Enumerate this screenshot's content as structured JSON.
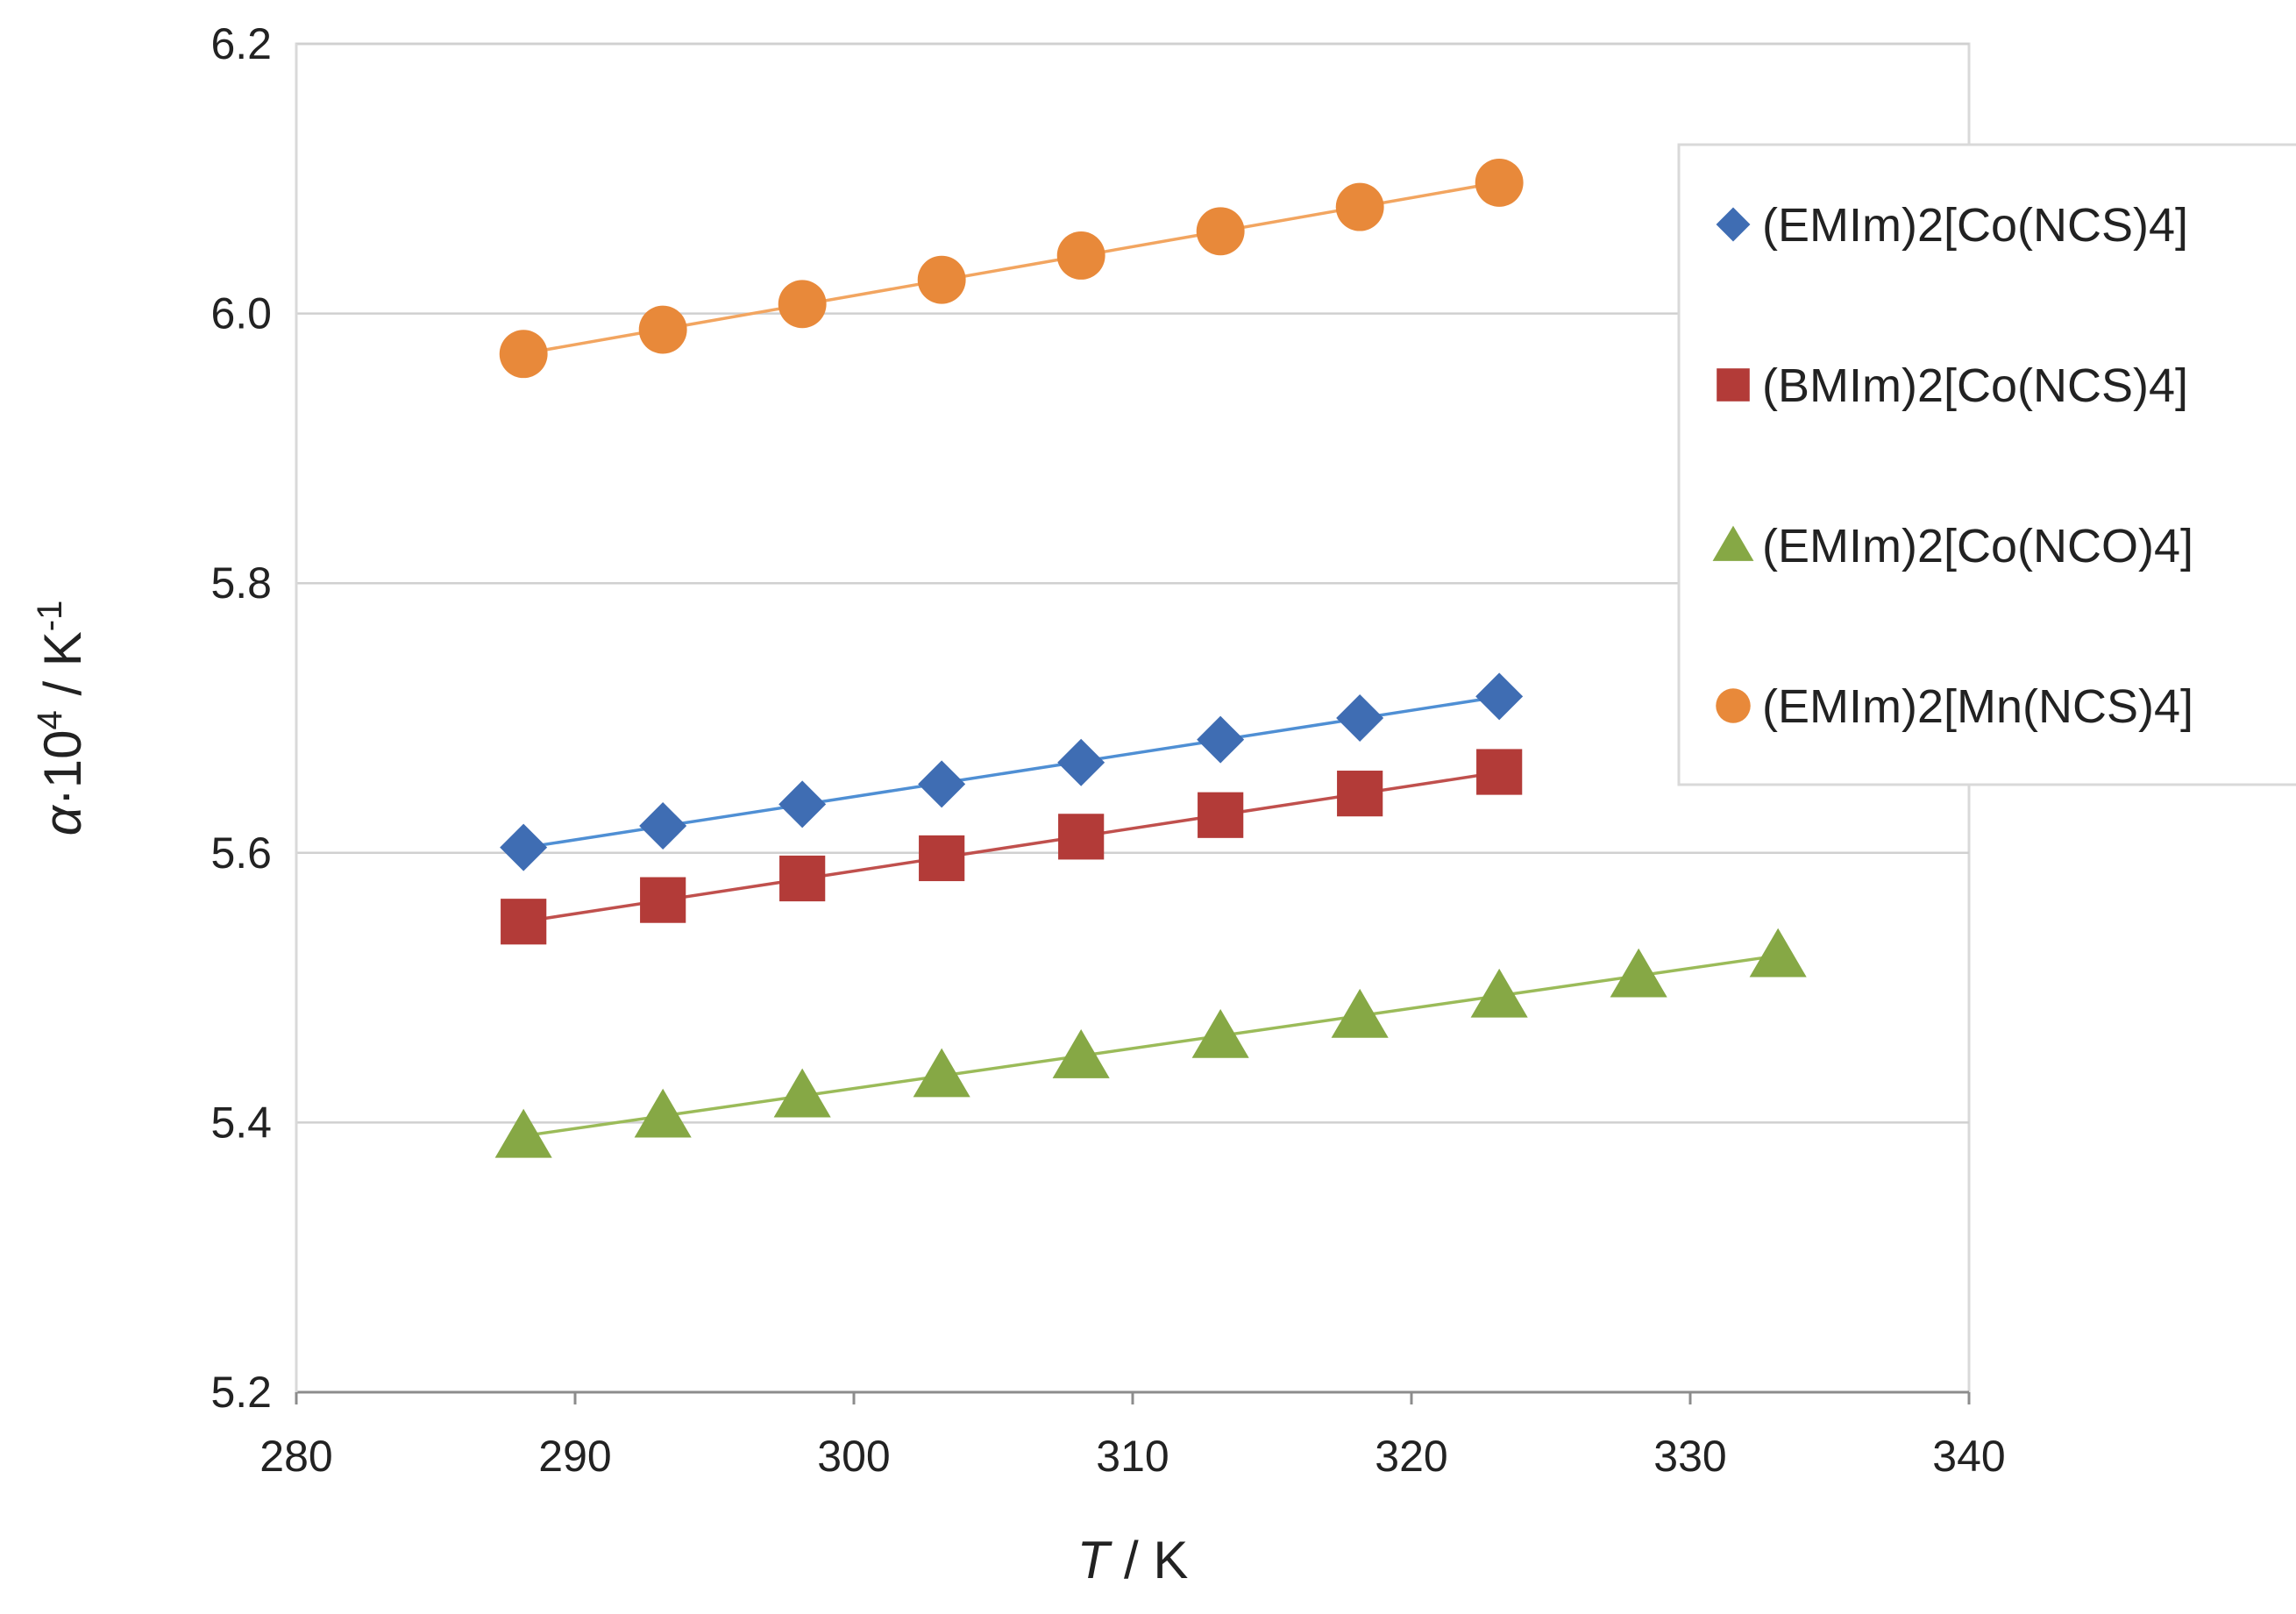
{
  "chart_data": {
    "type": "scatter",
    "title": "",
    "xlabel": {
      "var": "T",
      "unit": " / K"
    },
    "ylabel": {
      "var": "α",
      "mult": "·10",
      "exp": "4",
      "unit": " / K",
      "unit_exp": "-1"
    },
    "xlim": [
      280,
      340
    ],
    "ylim": [
      5.2,
      6.2
    ],
    "x_ticks": [
      "280",
      "290",
      "300",
      "310",
      "320",
      "330",
      "340"
    ],
    "y_ticks": [
      "5.2",
      "5.4",
      "5.6",
      "5.8",
      "6.0",
      "6.2"
    ],
    "grid": "horizontal",
    "legend": "right",
    "series": [
      {
        "name": "(EMIm)2[Co(NCS)4]",
        "marker": "diamond",
        "color": "#3f6db3",
        "line_color": "#4f8fd4",
        "x": [
          288.15,
          293.15,
          298.15,
          303.15,
          308.15,
          313.15,
          318.15,
          323.15
        ],
        "values": [
          5.604,
          5.62,
          5.636,
          5.651,
          5.667,
          5.684,
          5.7,
          5.716
        ]
      },
      {
        "name": "(BMIm)2[Co(NCS)4]",
        "marker": "square",
        "color": "#b33b38",
        "line_color": "#c0504d",
        "x": [
          288.15,
          293.15,
          298.15,
          303.15,
          308.15,
          313.15,
          318.15,
          323.15
        ],
        "values": [
          5.549,
          5.565,
          5.581,
          5.596,
          5.612,
          5.628,
          5.644,
          5.66
        ]
      },
      {
        "name": "(EMIm)2[Co(NCO)4]",
        "marker": "triangle",
        "color": "#86a845",
        "line_color": "#9bbb59",
        "x": [
          288.15,
          293.15,
          298.15,
          303.15,
          308.15,
          313.15,
          318.15,
          323.15,
          328.15,
          333.15
        ],
        "values": [
          5.39,
          5.405,
          5.42,
          5.435,
          5.449,
          5.464,
          5.479,
          5.494,
          5.509,
          5.524
        ]
      },
      {
        "name": "(EMIm)2[Mn(NCS)4]",
        "marker": "circle",
        "color": "#e8893a",
        "line_color": "#f2a560",
        "x": [
          288.15,
          293.15,
          298.15,
          303.15,
          308.15,
          313.15,
          318.15,
          323.15
        ],
        "values": [
          5.97,
          5.988,
          6.007,
          6.025,
          6.043,
          6.061,
          6.079,
          6.097
        ]
      }
    ]
  }
}
